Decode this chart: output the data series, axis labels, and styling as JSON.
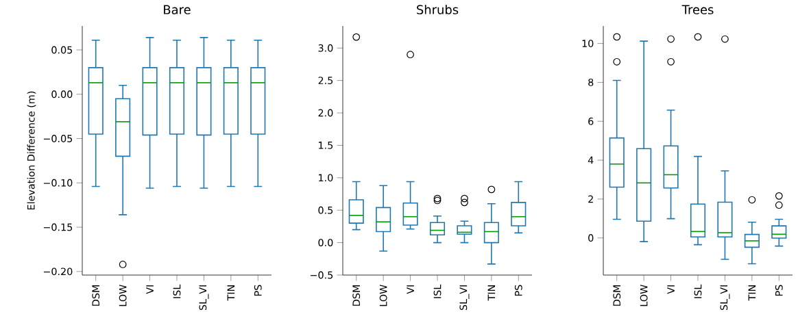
{
  "chart_data": [
    {
      "type": "box",
      "title": "Bare",
      "ylabel": "Elevation Difference (m)",
      "categories": [
        "DSM",
        "LOW",
        "VI",
        "ISL",
        "SL_VI",
        "TIN",
        "PS"
      ],
      "series": [
        {
          "color": "#1f77b4",
          "boxes": [
            {
              "low": -0.104,
              "q1": -0.045,
              "median": 0.013,
              "q3": 0.03,
              "high": 0.061
            },
            {
              "low": -0.136,
              "q1": -0.07,
              "median": -0.031,
              "q3": -0.005,
              "high": 0.01,
              "outliers": [
                -0.192
              ]
            },
            {
              "low": -0.106,
              "q1": -0.046,
              "median": 0.013,
              "q3": 0.03,
              "high": 0.064
            },
            {
              "low": -0.104,
              "q1": -0.045,
              "median": 0.013,
              "q3": 0.03,
              "high": 0.061
            },
            {
              "low": -0.106,
              "q1": -0.046,
              "median": 0.013,
              "q3": 0.03,
              "high": 0.064
            },
            {
              "low": -0.104,
              "q1": -0.045,
              "median": 0.013,
              "q3": 0.03,
              "high": 0.061
            },
            {
              "low": -0.104,
              "q1": -0.045,
              "median": 0.013,
              "q3": 0.03,
              "high": 0.061
            }
          ]
        }
      ],
      "ylim": [
        -0.204,
        0.077
      ],
      "yticks": [
        {
          "value": -0.2,
          "label": "−0.20"
        },
        {
          "value": -0.15,
          "label": "−0.15"
        },
        {
          "value": -0.1,
          "label": "−0.10"
        },
        {
          "value": -0.05,
          "label": "−0.05"
        },
        {
          "value": 0,
          "label": "0.00"
        },
        {
          "value": 0.05,
          "label": "0.05"
        }
      ]
    },
    {
      "type": "box",
      "title": "Shrubs",
      "categories": [
        "DSM",
        "LOW",
        "VI",
        "ISL",
        "SL_VI",
        "TIN",
        "PS"
      ],
      "series": [
        {
          "color": "#1f77b4",
          "boxes": [
            {
              "low": 0.2,
              "q1": 0.3,
              "median": 0.42,
              "q3": 0.66,
              "high": 0.94,
              "outliers": [
                3.17
              ]
            },
            {
              "low": -0.13,
              "q1": 0.17,
              "median": 0.32,
              "q3": 0.54,
              "high": 0.88
            },
            {
              "low": 0.21,
              "q1": 0.27,
              "median": 0.4,
              "q3": 0.61,
              "high": 0.94,
              "outliers": [
                2.9
              ]
            },
            {
              "low": 0.0,
              "q1": 0.12,
              "median": 0.19,
              "q3": 0.31,
              "high": 0.41,
              "outliers": [
                0.68,
                0.65
              ]
            },
            {
              "low": 0.0,
              "q1": 0.13,
              "median": 0.16,
              "q3": 0.26,
              "high": 0.33,
              "outliers": [
                0.68,
                0.62
              ]
            },
            {
              "low": -0.33,
              "q1": 0.0,
              "median": 0.17,
              "q3": 0.31,
              "high": 0.6,
              "outliers": [
                0.82
              ]
            },
            {
              "low": 0.15,
              "q1": 0.26,
              "median": 0.4,
              "q3": 0.62,
              "high": 0.94
            }
          ]
        }
      ],
      "ylim": [
        -0.5,
        3.34
      ],
      "yticks": [
        {
          "value": -0.5,
          "label": "−0.5"
        },
        {
          "value": 0,
          "label": "0.0"
        },
        {
          "value": 0.5,
          "label": "0.5"
        },
        {
          "value": 1,
          "label": "1.0"
        },
        {
          "value": 1.5,
          "label": "1.5"
        },
        {
          "value": 2,
          "label": "2.0"
        },
        {
          "value": 2.5,
          "label": "2.5"
        },
        {
          "value": 3,
          "label": "3.0"
        }
      ]
    },
    {
      "type": "box",
      "title": "Trees",
      "categories": [
        "DSM",
        "LOW",
        "VI",
        "ISL",
        "SL_VI",
        "TIN",
        "PS"
      ],
      "series": [
        {
          "color": "#1f77b4",
          "boxes": [
            {
              "low": 0.96,
              "q1": 2.61,
              "median": 3.8,
              "q3": 5.14,
              "high": 8.1,
              "outliers": [
                10.34,
                9.06
              ]
            },
            {
              "low": -0.19,
              "q1": 0.86,
              "median": 2.83,
              "q3": 4.59,
              "high": 10.12
            },
            {
              "low": 0.99,
              "q1": 2.57,
              "median": 3.25,
              "q3": 4.73,
              "high": 6.57,
              "outliers": [
                10.23,
                9.06
              ]
            },
            {
              "low": -0.35,
              "q1": 0.05,
              "median": 0.33,
              "q3": 1.74,
              "high": 4.19,
              "outliers": [
                10.34
              ]
            },
            {
              "low": -1.1,
              "q1": 0.05,
              "median": 0.27,
              "q3": 1.84,
              "high": 3.45,
              "outliers": [
                10.23
              ]
            },
            {
              "low": -1.33,
              "q1": -0.48,
              "median": -0.15,
              "q3": 0.18,
              "high": 0.81,
              "outliers": [
                1.96
              ]
            },
            {
              "low": -0.42,
              "q1": -0.01,
              "median": 0.19,
              "q3": 0.62,
              "high": 0.96,
              "outliers": [
                2.16,
                1.69
              ]
            }
          ]
        }
      ],
      "ylim": [
        -1.91,
        10.9
      ],
      "yticks": [
        0,
        2,
        4,
        6,
        8,
        10
      ]
    }
  ]
}
